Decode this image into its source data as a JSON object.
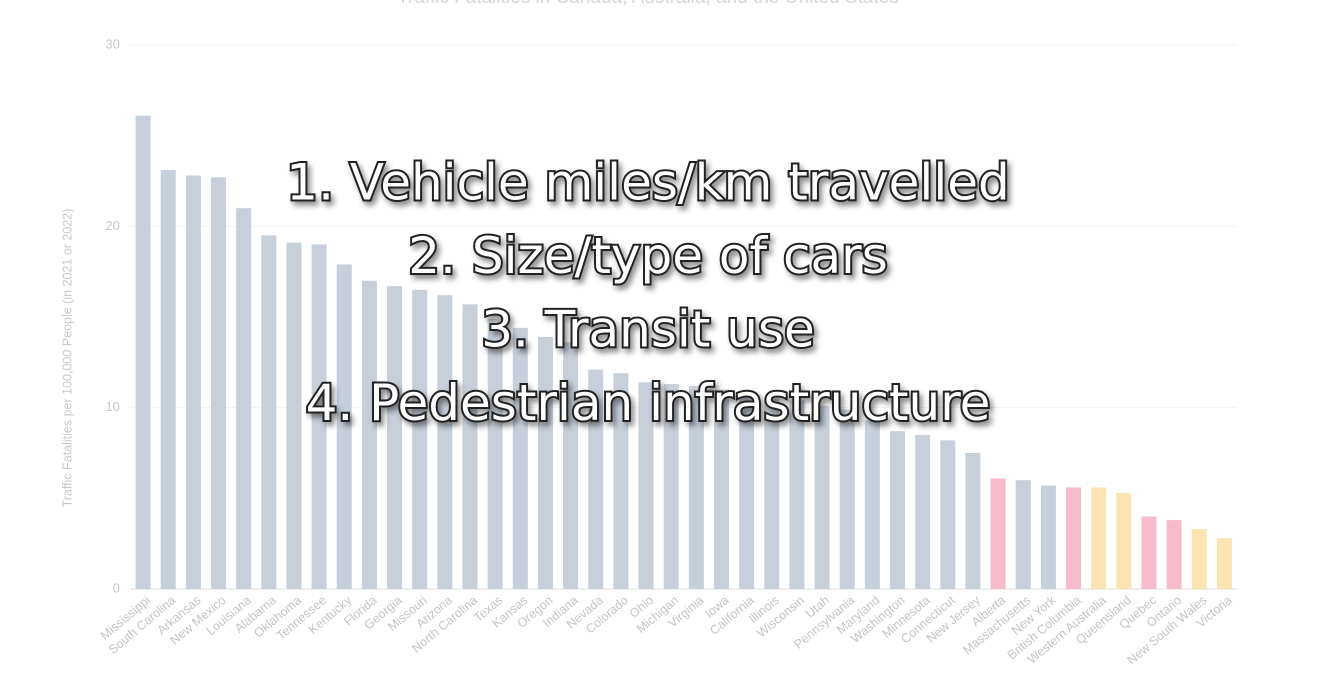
{
  "chart_data": {
    "type": "bar",
    "title": "Traffic Fatalities in Canada, Australia, and the United States",
    "y_label": "Traffic Fatalities per 100,000 People (in 2021 or 2022)",
    "categories": [
      "Mississippi",
      "South Carolina",
      "Arkansas",
      "New Mexico",
      "Louisiana",
      "Alabama",
      "Oklahoma",
      "Tennessee",
      "Kentucky",
      "Florida",
      "Georgia",
      "Missouri",
      "Arizona",
      "North Carolina",
      "Texas",
      "Kansas",
      "Oregon",
      "Indiana",
      "Nevada",
      "Colorado",
      "Ohio",
      "Michigan",
      "Virginia",
      "Iowa",
      "California",
      "Illinois",
      "Wisconsin",
      "Utah",
      "Pennsylvania",
      "Maryland",
      "Washington",
      "Minnesota",
      "Connecticut",
      "New Jersey",
      "Alberta",
      "Massachusetts",
      "New York",
      "British Columbia",
      "Western Australia",
      "Queensland",
      "Quebec",
      "Ontario",
      "New South Wales",
      "Victoria"
    ],
    "values": [
      26.1,
      23.1,
      22.8,
      22.7,
      21.0,
      19.5,
      19.1,
      19.0,
      17.9,
      17.0,
      16.7,
      16.5,
      16.2,
      15.7,
      14.9,
      14.4,
      13.9,
      13.6,
      12.1,
      11.9,
      11.4,
      11.3,
      11.2,
      11.0,
      10.8,
      10.5,
      10.4,
      10.1,
      9.9,
      9.3,
      8.7,
      8.5,
      8.2,
      7.5,
      6.1,
      6.0,
      5.7,
      5.6,
      5.6,
      5.3,
      4.0,
      3.8,
      3.3,
      2.8
    ],
    "colors": [
      "#c6cfda",
      "#c6cfda",
      "#c6cfda",
      "#c6cfda",
      "#c6cfda",
      "#c6cfda",
      "#c6cfda",
      "#c6cfda",
      "#c6cfda",
      "#c6cfda",
      "#c6cfda",
      "#c6cfda",
      "#c6cfda",
      "#c6cfda",
      "#c6cfda",
      "#c6cfda",
      "#c6cfda",
      "#c6cfda",
      "#c6cfda",
      "#c6cfda",
      "#c6cfda",
      "#c6cfda",
      "#c6cfda",
      "#c6cfda",
      "#c6cfda",
      "#c6cfda",
      "#c6cfda",
      "#c6cfda",
      "#c6cfda",
      "#c6cfda",
      "#c6cfda",
      "#c6cfda",
      "#c6cfda",
      "#c6cfda",
      "#f6bccb",
      "#c6cfda",
      "#c6cfda",
      "#f6bccb",
      "#fbe4b2",
      "#fbe4b2",
      "#f6bccb",
      "#f6bccb",
      "#fbe4b2",
      "#fbe4b2"
    ],
    "ylim": [
      0,
      30
    ],
    "yticks": [
      0,
      10,
      20,
      30
    ],
    "grid": true,
    "annotations": [
      "1. Vehicle miles/km travelled",
      "2. Size/type of cars",
      "3. Transit use",
      "4. Pedestrian infrastructure"
    ]
  }
}
